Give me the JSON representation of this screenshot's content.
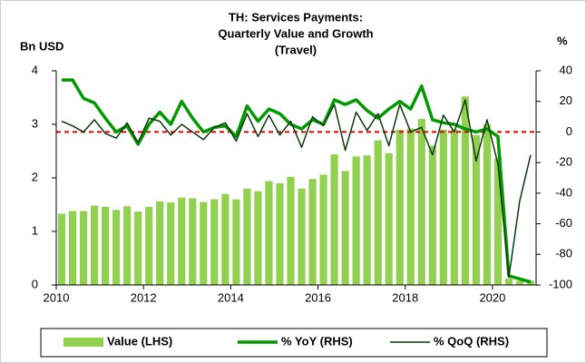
{
  "chart_data": {
    "type": "bar_line",
    "title": [
      "TH: Services Payments:",
      "Quarterly Value and Growth",
      "(Travel)"
    ],
    "y_label": "Bn USD",
    "y2_label": "%",
    "x": [
      2010.125,
      2010.375,
      2010.625,
      2010.875,
      2011.125,
      2011.375,
      2011.625,
      2011.875,
      2012.125,
      2012.375,
      2012.625,
      2012.875,
      2013.125,
      2013.375,
      2013.625,
      2013.875,
      2014.125,
      2014.375,
      2014.625,
      2014.875,
      2015.125,
      2015.375,
      2015.625,
      2015.875,
      2016.125,
      2016.375,
      2016.625,
      2016.875,
      2017.125,
      2017.375,
      2017.625,
      2017.875,
      2018.125,
      2018.375,
      2018.625,
      2018.875,
      2019.125,
      2019.375,
      2019.625,
      2019.875,
      2020.125,
      2020.375,
      2020.625,
      2020.875
    ],
    "series": [
      {
        "name": "Value (LHS)",
        "kind": "bar",
        "axis": "y",
        "color": "#92d050",
        "values": [
          1.33,
          1.38,
          1.38,
          1.48,
          1.46,
          1.4,
          1.47,
          1.37,
          1.46,
          1.56,
          1.54,
          1.63,
          1.62,
          1.55,
          1.6,
          1.7,
          1.6,
          1.8,
          1.75,
          1.94,
          1.9,
          2.02,
          1.8,
          1.98,
          2.06,
          2.44,
          2.13,
          2.4,
          2.42,
          2.7,
          2.46,
          2.9,
          2.92,
          3.1,
          2.6,
          2.9,
          2.9,
          3.52,
          2.8,
          3.0,
          2.37,
          0.12,
          0.08,
          0.08
        ]
      },
      {
        "name": "% YoY (RHS)",
        "kind": "line",
        "axis": "y2",
        "color": "#009a00",
        "width": 3.5,
        "values": [
          34,
          34,
          22,
          19,
          9,
          0,
          4,
          -8,
          5,
          13,
          5,
          20,
          9,
          0,
          3,
          4,
          -3,
          17,
          7,
          15,
          12,
          5,
          2,
          8,
          5,
          21,
          18,
          21,
          14,
          9,
          15,
          20,
          15,
          30,
          8,
          6,
          5,
          2,
          0,
          2,
          -3,
          -94,
          -96,
          -98
        ]
      },
      {
        "name": "% QoQ (RHS)",
        "kind": "line",
        "axis": "y2",
        "color": "#0b3a0b",
        "width": 1.5,
        "values": [
          7,
          4,
          0,
          8,
          -1,
          -4,
          6,
          -7,
          9,
          7,
          -2,
          5,
          0,
          -5,
          3,
          6,
          -6,
          12,
          -3,
          11,
          -2,
          7,
          -10,
          10,
          4,
          18,
          -12,
          13,
          1,
          12,
          -9,
          18,
          0,
          3,
          -15,
          11,
          0,
          21,
          -19,
          8,
          -21,
          -95,
          -45,
          -15
        ]
      }
    ],
    "hline": {
      "value": 0,
      "axis": "y2",
      "color": "#e00000"
    },
    "xlim": [
      2010,
      2021
    ],
    "xticks": [
      2010,
      2012,
      2014,
      2016,
      2018,
      2020
    ],
    "ylim": [
      0,
      4
    ],
    "yticks": [
      0,
      1,
      2,
      3,
      4
    ],
    "y2lim": [
      -100,
      40
    ],
    "y2ticks": [
      -100,
      -80,
      -60,
      -40,
      -20,
      0,
      20,
      40
    ]
  }
}
